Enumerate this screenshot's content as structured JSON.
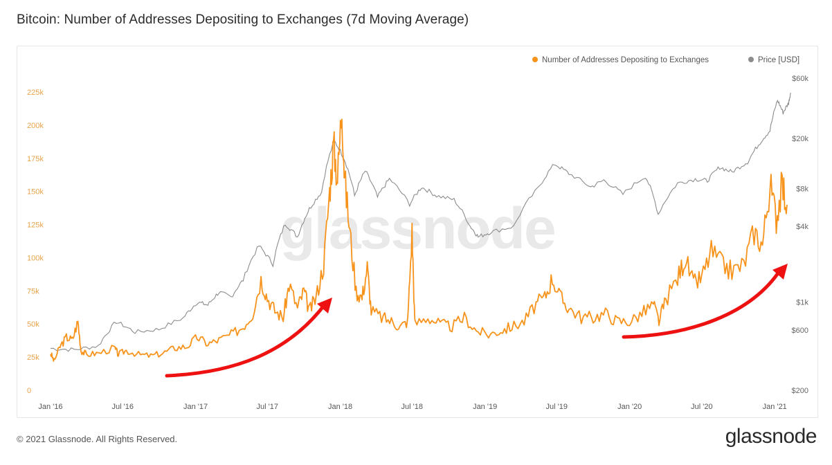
{
  "header": {
    "title": "Bitcoin: Number of Addresses Depositing to Exchanges (7d Moving Average)"
  },
  "footer": {
    "copyright": "© 2021 Glassnode. All Rights Reserved.",
    "brand": "glassnode"
  },
  "watermark": "glassnode",
  "colors": {
    "addresses": "#f7931a",
    "price": "#8c8c8c",
    "arrow": "#ee1111",
    "left_axis": "#e8a34a"
  },
  "chart_data": {
    "type": "line",
    "title": "Bitcoin: Number of Addresses Depositing to Exchanges (7d Moving Average)",
    "legend": {
      "placement": "top-right",
      "entries": [
        "Number of Addresses Depositing to Exchanges",
        "Price [USD]"
      ]
    },
    "x_ticks": [
      "Jan '16",
      "Jul '16",
      "Jan '17",
      "Jul '17",
      "Jan '18",
      "Jul '18",
      "Jan '19",
      "Jul '19",
      "Jan '20",
      "Jul '20",
      "Jan '21"
    ],
    "y_left": {
      "ticks": [
        "0",
        "25k",
        "50k",
        "75k",
        "100k",
        "125k",
        "150k",
        "175k",
        "200k",
        "225k"
      ],
      "range": [
        0,
        225000
      ]
    },
    "y_right": {
      "scale": "log",
      "ticks": [
        "$200",
        "$600",
        "$1k",
        "$4k",
        "$8k",
        "$20k",
        "$60k"
      ],
      "range": [
        200,
        60000
      ]
    },
    "grid": false,
    "series": [
      {
        "name": "Number of Addresses Depositing to Exchanges",
        "axis": "left",
        "points": [
          [
            "2016-01-01",
            28000
          ],
          [
            "2016-01-10",
            22000
          ],
          [
            "2016-01-25",
            33000
          ],
          [
            "2016-02-10",
            40000
          ],
          [
            "2016-02-25",
            38000
          ],
          [
            "2016-03-10",
            52000
          ],
          [
            "2016-03-18",
            30000
          ],
          [
            "2016-04-01",
            27000
          ],
          [
            "2016-05-01",
            28000
          ],
          [
            "2016-06-10",
            32000
          ],
          [
            "2016-06-20",
            27000
          ],
          [
            "2016-07-10",
            30000
          ],
          [
            "2016-08-10",
            27000
          ],
          [
            "2016-09-10",
            26000
          ],
          [
            "2016-10-10",
            28000
          ],
          [
            "2016-11-10",
            32000
          ],
          [
            "2016-12-10",
            33000
          ],
          [
            "2017-01-05",
            40000
          ],
          [
            "2017-02-01",
            35000
          ],
          [
            "2017-03-01",
            38000
          ],
          [
            "2017-04-01",
            42000
          ],
          [
            "2017-05-01",
            48000
          ],
          [
            "2017-05-25",
            58000
          ],
          [
            "2017-06-15",
            84000
          ],
          [
            "2017-07-01",
            70000
          ],
          [
            "2017-07-20",
            60000
          ],
          [
            "2017-08-10",
            55000
          ],
          [
            "2017-08-25",
            80000
          ],
          [
            "2017-09-15",
            62000
          ],
          [
            "2017-10-01",
            75000
          ],
          [
            "2017-10-15",
            60000
          ],
          [
            "2017-11-01",
            70000
          ],
          [
            "2017-11-20",
            95000
          ],
          [
            "2017-12-05",
            150000
          ],
          [
            "2017-12-15",
            185000
          ],
          [
            "2017-12-25",
            160000
          ],
          [
            "2018-01-05",
            215000
          ],
          [
            "2018-01-12",
            160000
          ],
          [
            "2018-01-25",
            120000
          ],
          [
            "2018-02-10",
            75000
          ],
          [
            "2018-02-25",
            70000
          ],
          [
            "2018-03-10",
            93000
          ],
          [
            "2018-03-20",
            60000
          ],
          [
            "2018-04-15",
            55000
          ],
          [
            "2018-05-10",
            52000
          ],
          [
            "2018-06-01",
            48000
          ],
          [
            "2018-06-20",
            52000
          ],
          [
            "2018-07-01",
            120000
          ],
          [
            "2018-07-08",
            50000
          ],
          [
            "2018-08-10",
            55000
          ],
          [
            "2018-09-10",
            50000
          ],
          [
            "2018-10-10",
            48000
          ],
          [
            "2018-11-10",
            55000
          ],
          [
            "2018-12-10",
            45000
          ],
          [
            "2019-01-10",
            42000
          ],
          [
            "2019-02-10",
            45000
          ],
          [
            "2019-03-10",
            48000
          ],
          [
            "2019-04-10",
            52000
          ],
          [
            "2019-05-10",
            65000
          ],
          [
            "2019-06-01",
            70000
          ],
          [
            "2019-06-20",
            85000
          ],
          [
            "2019-07-10",
            70000
          ],
          [
            "2019-08-01",
            62000
          ],
          [
            "2019-09-01",
            55000
          ],
          [
            "2019-10-01",
            55000
          ],
          [
            "2019-11-01",
            58000
          ],
          [
            "2019-12-01",
            52000
          ],
          [
            "2020-01-01",
            52000
          ],
          [
            "2020-02-01",
            58000
          ],
          [
            "2020-03-01",
            65000
          ],
          [
            "2020-03-15",
            52000
          ],
          [
            "2020-04-01",
            68000
          ],
          [
            "2020-05-01",
            85000
          ],
          [
            "2020-05-20",
            100000
          ],
          [
            "2020-06-10",
            80000
          ],
          [
            "2020-07-01",
            85000
          ],
          [
            "2020-07-25",
            105000
          ],
          [
            "2020-08-20",
            95000
          ],
          [
            "2020-09-15",
            90000
          ],
          [
            "2020-10-15",
            95000
          ],
          [
            "2020-11-10",
            120000
          ],
          [
            "2020-12-01",
            110000
          ],
          [
            "2020-12-20",
            155000
          ],
          [
            "2021-01-05",
            130000
          ],
          [
            "2021-01-20",
            155000
          ],
          [
            "2021-02-01",
            140000
          ]
        ]
      },
      {
        "name": "Price [USD]",
        "axis": "right",
        "points": [
          [
            "2016-01-01",
            430
          ],
          [
            "2016-03-01",
            420
          ],
          [
            "2016-05-01",
            450
          ],
          [
            "2016-06-15",
            700
          ],
          [
            "2016-08-01",
            580
          ],
          [
            "2016-10-01",
            610
          ],
          [
            "2016-12-01",
            750
          ],
          [
            "2017-01-05",
            1000
          ],
          [
            "2017-02-01",
            950
          ],
          [
            "2017-03-01",
            1200
          ],
          [
            "2017-04-01",
            1100
          ],
          [
            "2017-05-01",
            1500
          ],
          [
            "2017-06-10",
            2800
          ],
          [
            "2017-07-15",
            2000
          ],
          [
            "2017-08-15",
            4200
          ],
          [
            "2017-09-15",
            3300
          ],
          [
            "2017-10-15",
            5500
          ],
          [
            "2017-11-15",
            7500
          ],
          [
            "2017-12-17",
            19000
          ],
          [
            "2018-01-10",
            14000
          ],
          [
            "2018-02-06",
            7000
          ],
          [
            "2018-03-05",
            11000
          ],
          [
            "2018-04-05",
            6800
          ],
          [
            "2018-05-05",
            9500
          ],
          [
            "2018-06-25",
            6000
          ],
          [
            "2018-07-25",
            8200
          ],
          [
            "2018-09-01",
            7000
          ],
          [
            "2018-10-15",
            6500
          ],
          [
            "2018-11-25",
            4000
          ],
          [
            "2018-12-15",
            3300
          ],
          [
            "2019-01-15",
            3600
          ],
          [
            "2019-03-15",
            4000
          ],
          [
            "2019-05-15",
            8000
          ],
          [
            "2019-06-26",
            12500
          ],
          [
            "2019-08-01",
            10500
          ],
          [
            "2019-09-25",
            8200
          ],
          [
            "2019-10-28",
            9300
          ],
          [
            "2019-12-15",
            7200
          ],
          [
            "2020-02-10",
            10000
          ],
          [
            "2020-03-13",
            5000
          ],
          [
            "2020-05-01",
            8800
          ],
          [
            "2020-06-15",
            9500
          ],
          [
            "2020-07-15",
            9200
          ],
          [
            "2020-08-15",
            11800
          ],
          [
            "2020-09-15",
            10800
          ],
          [
            "2020-10-25",
            13000
          ],
          [
            "2020-11-25",
            18500
          ],
          [
            "2020-12-20",
            23000
          ],
          [
            "2021-01-08",
            40000
          ],
          [
            "2021-01-22",
            32000
          ],
          [
            "2021-02-05",
            38000
          ],
          [
            "2021-02-10",
            46000
          ]
        ]
      }
    ]
  }
}
